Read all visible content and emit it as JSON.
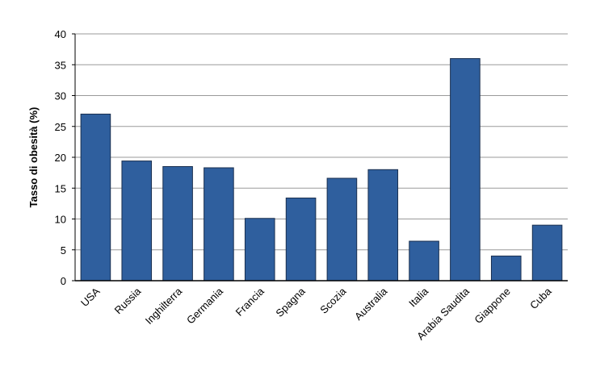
{
  "chart_data": {
    "type": "bar",
    "y_label": "Tasso di obesità (%)",
    "categories": [
      "USA",
      "Russia",
      "Inghilterra",
      "Germania",
      "Francia",
      "Spagna",
      "Scozia",
      "Australia",
      "Italia",
      "Arabia Saudita",
      "Giappone",
      "Cuba"
    ],
    "values": [
      27,
      19.4,
      18.5,
      18.3,
      10.1,
      13.4,
      16.6,
      18,
      6.4,
      36,
      4,
      9
    ],
    "color": "#2f5f9e",
    "ylim": [
      0,
      40
    ],
    "yticks": [
      0,
      5,
      10,
      15,
      20,
      25,
      30,
      35,
      40
    ],
    "grid": true
  }
}
